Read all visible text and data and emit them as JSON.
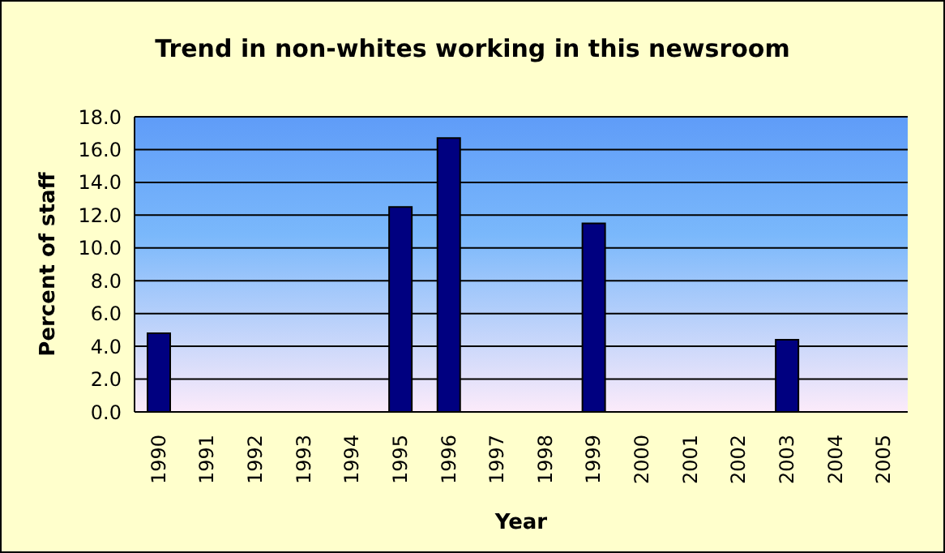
{
  "chart_data": {
    "type": "bar",
    "title": "Trend in non-whites working in this newsroom",
    "xlabel": "Year",
    "ylabel": "Percent of staff",
    "categories": [
      "1990",
      "1991",
      "1992",
      "1993",
      "1994",
      "1995",
      "1996",
      "1997",
      "1998",
      "1999",
      "2000",
      "2001",
      "2002",
      "2003",
      "2004",
      "2005"
    ],
    "values": [
      4.8,
      null,
      null,
      null,
      null,
      12.5,
      16.7,
      null,
      null,
      11.5,
      null,
      null,
      null,
      4.4,
      null,
      null
    ],
    "color": "#000080",
    "ylim": [
      0,
      18
    ],
    "yticks": [
      {
        "value": 0,
        "label": "0.0"
      },
      {
        "value": 2,
        "label": "2.0"
      },
      {
        "value": 4,
        "label": "4.0"
      },
      {
        "value": 6,
        "label": "6.0"
      },
      {
        "value": 8,
        "label": "8.0"
      },
      {
        "value": 10,
        "label": "10.0"
      },
      {
        "value": 12,
        "label": "12.0"
      },
      {
        "value": 14,
        "label": "14.0"
      },
      {
        "value": 16,
        "label": "16.0"
      },
      {
        "value": 18,
        "label": "18.0"
      }
    ],
    "grid": "y"
  }
}
